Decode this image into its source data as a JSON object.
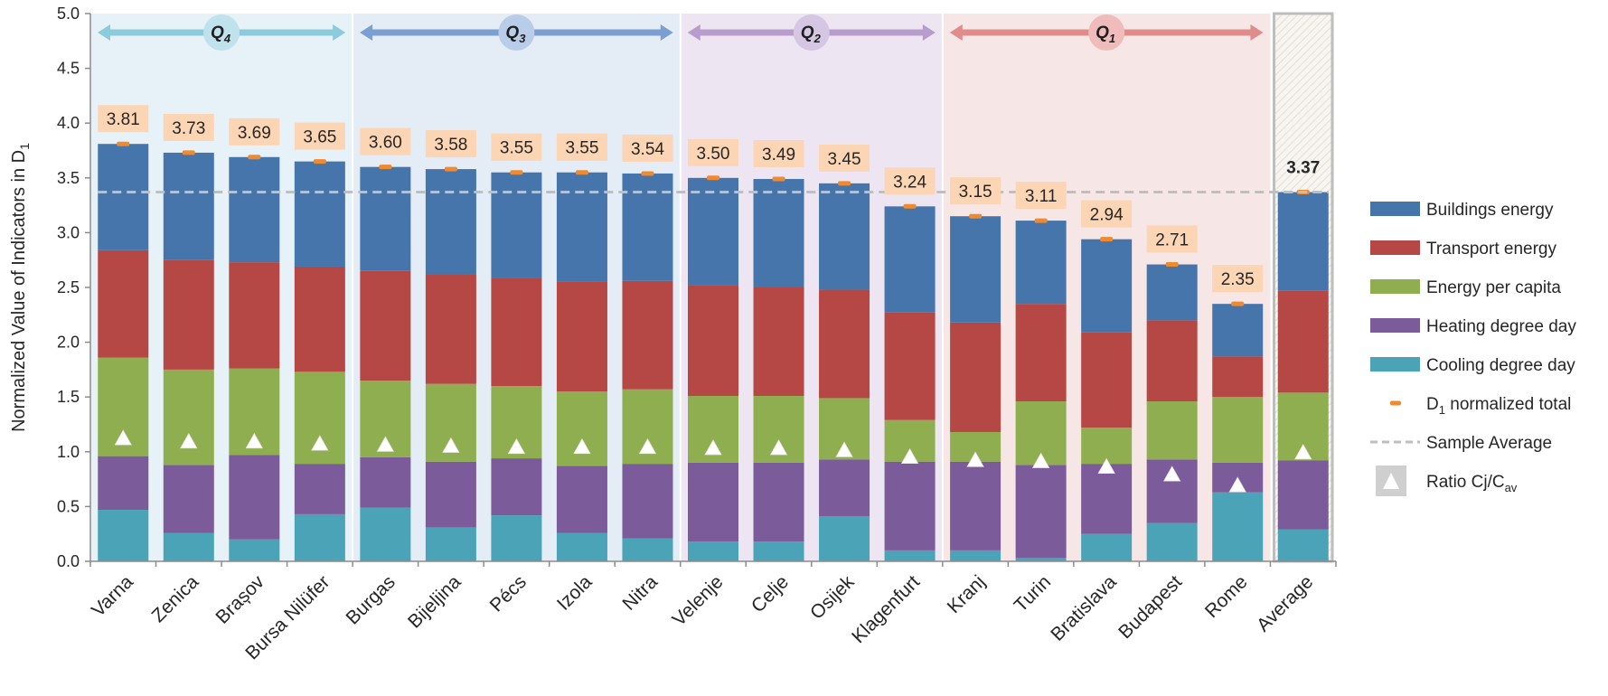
{
  "chart_data": {
    "type": "bar",
    "stacked": true,
    "ylabel": "Normalized Value of Indicators in D",
    "ylabel_sub": "1",
    "ylim": [
      0,
      5.0
    ],
    "ystep": 0.5,
    "yticks": [
      "0.0",
      "0.5",
      "1.0",
      "1.5",
      "2.0",
      "2.5",
      "3.0",
      "3.5",
      "4.0",
      "4.5",
      "5.0"
    ],
    "categories": [
      "Varna",
      "Zenica",
      "Brașov",
      "Bursa Nilüfer",
      "Burgas",
      "Bijeljina",
      "Pécs",
      "Izola",
      "Nitra",
      "Velenje",
      "Celje",
      "Osijek",
      "Klagenfurt",
      "Kranj",
      "Turin",
      "Bratislava",
      "Budapest",
      "Rome",
      "Average"
    ],
    "series": [
      {
        "name": "Cooling degree day",
        "color": "#4aa3b7",
        "values": [
          0.47,
          0.26,
          0.2,
          0.43,
          0.49,
          0.31,
          0.42,
          0.26,
          0.21,
          0.18,
          0.18,
          0.41,
          0.1,
          0.1,
          0.03,
          0.25,
          0.35,
          0.63,
          0.29
        ]
      },
      {
        "name": "Heating degree day",
        "color": "#7b5b9a",
        "values": [
          0.49,
          0.62,
          0.77,
          0.46,
          0.46,
          0.6,
          0.52,
          0.61,
          0.68,
          0.72,
          0.72,
          0.52,
          0.81,
          0.81,
          0.85,
          0.64,
          0.58,
          0.27,
          0.63
        ]
      },
      {
        "name": "Energy per capita",
        "color": "#8fae4f",
        "values": [
          0.9,
          0.87,
          0.79,
          0.84,
          0.7,
          0.71,
          0.66,
          0.68,
          0.68,
          0.61,
          0.61,
          0.56,
          0.38,
          0.27,
          0.58,
          0.33,
          0.53,
          0.6,
          0.62
        ]
      },
      {
        "name": "Transport energy",
        "color": "#b54744",
        "values": [
          0.98,
          1.0,
          0.97,
          0.96,
          1.0,
          1.0,
          0.99,
          1.0,
          0.99,
          1.01,
          0.99,
          0.99,
          0.98,
          1.0,
          0.89,
          0.87,
          0.74,
          0.37,
          0.93
        ]
      },
      {
        "name": "Buildings energy",
        "color": "#4575aa",
        "values": [
          0.97,
          0.98,
          0.96,
          0.96,
          0.95,
          0.96,
          0.96,
          1.0,
          0.98,
          0.98,
          0.99,
          0.97,
          0.97,
          0.97,
          0.76,
          0.85,
          0.51,
          0.48,
          0.9
        ]
      }
    ],
    "totals": [
      3.81,
      3.73,
      3.69,
      3.65,
      3.6,
      3.58,
      3.55,
      3.55,
      3.54,
      3.5,
      3.49,
      3.45,
      3.24,
      3.15,
      3.11,
      2.94,
      2.71,
      2.35,
      3.37
    ],
    "total_labels": [
      "3.81",
      "3.73",
      "3.69",
      "3.65",
      "3.60",
      "3.58",
      "3.55",
      "3.55",
      "3.54",
      "3.50",
      "3.49",
      "3.45",
      "3.24",
      "3.15",
      "3.11",
      "2.94",
      "2.71",
      "2.35",
      "3.37"
    ],
    "ratio": [
      1.13,
      1.1,
      1.1,
      1.08,
      1.07,
      1.06,
      1.05,
      1.05,
      1.05,
      1.04,
      1.04,
      1.02,
      0.96,
      0.93,
      0.92,
      0.87,
      0.8,
      0.7,
      1.0
    ],
    "sample_average": 3.37,
    "quartiles": [
      {
        "label": "Q",
        "sub": "4",
        "first": 0,
        "last": 3,
        "band_color": "#e6f2f7",
        "arrow_color": "#8ccbdc",
        "circle_color": "#bfe2ec"
      },
      {
        "label": "Q",
        "sub": "3",
        "first": 4,
        "last": 8,
        "band_color": "#e4ecf6",
        "arrow_color": "#7a9fd0",
        "circle_color": "#b9cce8"
      },
      {
        "label": "Q",
        "sub": "2",
        "first": 9,
        "last": 12,
        "band_color": "#ede6f2",
        "arrow_color": "#b69dcc",
        "circle_color": "#d5c6e3"
      },
      {
        "label": "Q",
        "sub": "1",
        "first": 13,
        "last": 17,
        "band_color": "#f6e6e6",
        "arrow_color": "#e08c8a",
        "circle_color": "#f0bcbb"
      }
    ],
    "legend": {
      "placement": "right",
      "items": [
        {
          "label": "Buildings energy",
          "kind": "box",
          "color": "#4575aa"
        },
        {
          "label": "Transport energy",
          "kind": "box",
          "color": "#b54744"
        },
        {
          "label": "Energy per capita",
          "kind": "box",
          "color": "#8fae4f"
        },
        {
          "label": "Heating degree day",
          "kind": "box",
          "color": "#7b5b9a"
        },
        {
          "label": "Cooling degree day",
          "kind": "box",
          "color": "#4aa3b7"
        },
        {
          "label": "D",
          "sub": "1",
          "suffix": " normalized total",
          "kind": "dash",
          "color": "#ee8a2f"
        },
        {
          "label": "Sample Average",
          "kind": "dashed-line",
          "color": "#bfbfbf"
        },
        {
          "label": "Ratio Cj/C",
          "sub": "av",
          "kind": "triangle",
          "color": "#ffffff"
        }
      ]
    },
    "label_box_color": "#fcd5b4",
    "marker_color": "#ee8a2f",
    "grid": false
  }
}
